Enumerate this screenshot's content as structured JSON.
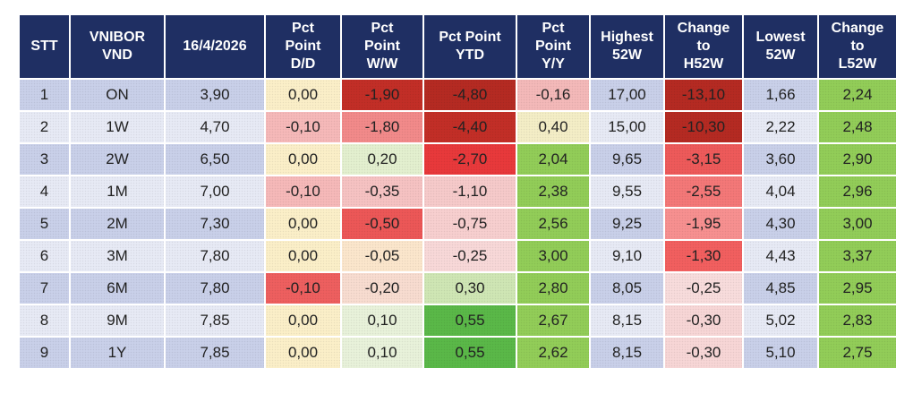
{
  "header": [
    "STT",
    "VNIBOR VND",
    "16/4/2026",
    "Pct Point D/D",
    "Pct Point W/W",
    "Pct Point YTD",
    "Pct Point Y/Y",
    "Highest 52W",
    "Change to H52W",
    "Lowest 52W",
    "Change to L52W"
  ],
  "rows": [
    [
      "1",
      "ON",
      "3,90",
      "0,00",
      "-1,90",
      "-4,80",
      "-0,16",
      "17,00",
      "-13,10",
      "1,66",
      "2,24"
    ],
    [
      "2",
      "1W",
      "4,70",
      "-0,10",
      "-1,80",
      "-4,40",
      "0,40",
      "15,00",
      "-10,30",
      "2,22",
      "2,48"
    ],
    [
      "3",
      "2W",
      "6,50",
      "0,00",
      "0,20",
      "-2,70",
      "2,04",
      "9,65",
      "-3,15",
      "3,60",
      "2,90"
    ],
    [
      "4",
      "1M",
      "7,00",
      "-0,10",
      "-0,35",
      "-1,10",
      "2,38",
      "9,55",
      "-2,55",
      "4,04",
      "2,96"
    ],
    [
      "5",
      "2M",
      "7,30",
      "0,00",
      "-0,50",
      "-0,75",
      "2,56",
      "9,25",
      "-1,95",
      "4,30",
      "3,00"
    ],
    [
      "6",
      "3M",
      "7,80",
      "0,00",
      "-0,05",
      "-0,25",
      "3,00",
      "9,10",
      "-1,30",
      "4,43",
      "3,37"
    ],
    [
      "7",
      "6M",
      "7,80",
      "-0,10",
      "-0,20",
      "0,30",
      "2,80",
      "8,05",
      "-0,25",
      "4,85",
      "2,95"
    ],
    [
      "8",
      "9M",
      "7,85",
      "0,00",
      "0,10",
      "0,55",
      "2,67",
      "8,15",
      "-0,30",
      "5,02",
      "2,83"
    ],
    [
      "9",
      "1Y",
      "7,85",
      "0,00",
      "0,10",
      "0,55",
      "2,62",
      "8,15",
      "-0,30",
      "5,10",
      "2,75"
    ]
  ],
  "colors": {
    "header_bg": "#1f2f63",
    "header_text": "#ffffff",
    "row_odd": "#c9d0e9",
    "row_even": "#e7eaf5",
    "cells": [
      [
        null,
        null,
        null,
        "#fbefc8",
        "#c22e27",
        "#b52a22",
        "#f4b9b9",
        null,
        "#b52a22",
        null,
        "#92cd58"
      ],
      [
        null,
        null,
        null,
        "#f6b9b9",
        "#f28a8a",
        "#c22e27",
        "#f4eec6",
        null,
        "#b52a22",
        null,
        "#92cd58"
      ],
      [
        null,
        null,
        null,
        "#fbefc8",
        "#e3f0cf",
        "#e8393b",
        "#92cd58",
        null,
        "#ee5a5a",
        null,
        "#92cd58"
      ],
      [
        null,
        null,
        null,
        "#f6b9b9",
        "#f6c2c2",
        "#f6caca",
        "#92cd58",
        null,
        "#f47878",
        null,
        "#92cd58"
      ],
      [
        null,
        null,
        null,
        "#fbefc8",
        "#ec5757",
        "#f7cfcf",
        "#92cd58",
        null,
        "#f79090",
        null,
        "#92cd58"
      ],
      [
        null,
        null,
        null,
        "#fbefc8",
        "#fbe6cc",
        "#f8d8d8",
        "#92cd58",
        null,
        "#f25f5f",
        null,
        "#92cd58"
      ],
      [
        null,
        null,
        null,
        "#ee5f5f",
        "#f8dcd0",
        "#cfe6b4",
        "#92cd58",
        null,
        "#f8dcdc",
        null,
        "#92cd58"
      ],
      [
        null,
        null,
        null,
        "#fbefc8",
        "#e8f2da",
        "#5ab848",
        "#92cd58",
        null,
        "#f7d6d6",
        null,
        "#92cd58"
      ],
      [
        null,
        null,
        null,
        "#fbefc8",
        "#e8f2da",
        "#5ab848",
        "#92cd58",
        null,
        "#f7d6d6",
        null,
        "#92cd58"
      ]
    ]
  }
}
